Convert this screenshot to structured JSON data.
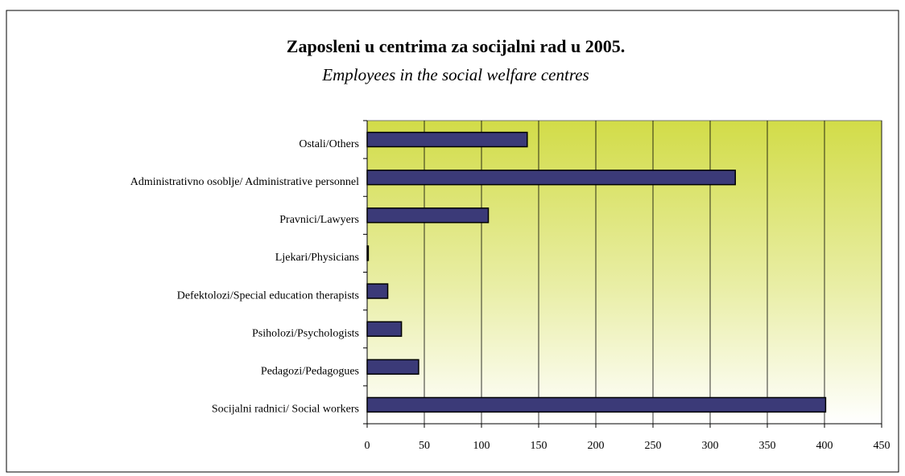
{
  "chart_data": {
    "type": "bar",
    "orientation": "horizontal",
    "title": "Zaposleni u centrima za socijalni rad u 2005.",
    "subtitle": "Employees in the social welfare centres",
    "categories": [
      "Ostali/Others",
      "Administrativno osoblje/ Administrative personnel",
      "Pravnici/Lawyers",
      "Ljekari/Physicians",
      "Defektolozi/Special education therapists",
      "Psiholozi/Psychologists",
      "Pedagozi/Pedagogues",
      "Socijalni radnici/ Social workers"
    ],
    "values": [
      140,
      322,
      106,
      1,
      18,
      30,
      45,
      401
    ],
    "color": "#3b3a78",
    "xlim": [
      0,
      450
    ],
    "xticks": [
      0,
      50,
      100,
      150,
      200,
      250,
      300,
      350,
      400,
      450
    ],
    "grid": true
  }
}
